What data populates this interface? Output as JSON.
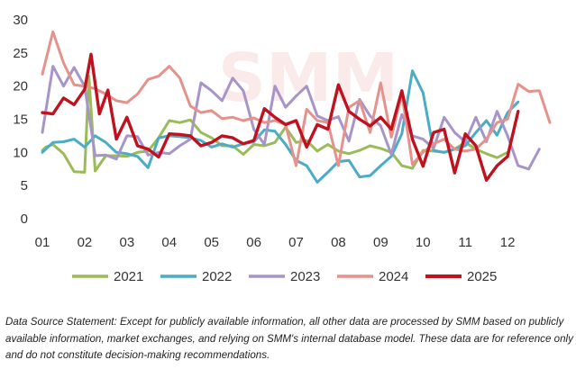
{
  "chart_data": {
    "type": "line",
    "title": "",
    "xlabel": "",
    "ylabel": "",
    "ylim": [
      0,
      30
    ],
    "yticks": [
      0,
      5,
      10,
      15,
      20,
      25,
      30
    ],
    "xlim": [
      1,
      13
    ],
    "xticks": [
      "01",
      "02",
      "03",
      "04",
      "05",
      "06",
      "07",
      "08",
      "09",
      "10",
      "11",
      "12"
    ],
    "grid": false,
    "legend": "bottom",
    "watermark": "SMM",
    "series": [
      {
        "name": "2021",
        "color": "#9bbb59",
        "x": [
          1,
          1.08,
          1.25,
          1.5,
          1.75,
          2.0,
          2.1,
          2.25,
          2.5,
          2.75,
          3.0,
          3.25,
          3.5,
          3.75,
          4.0,
          4.25,
          4.5,
          4.75,
          5.0,
          5.25,
          5.5,
          5.75,
          6.0,
          6.25,
          6.5,
          6.75,
          7.0,
          7.25,
          7.5,
          7.75,
          8.0,
          8.25,
          8.5,
          8.75,
          9.0,
          9.25,
          9.5,
          9.75,
          10.0,
          10.25,
          10.5,
          10.75,
          11.0,
          11.25,
          11.5,
          11.75,
          12.0
        ],
        "y": [
          10.3,
          10.8,
          11.2,
          9.8,
          7.1,
          7.0,
          21.5,
          7.2,
          9.5,
          9.5,
          9.4,
          10.0,
          10.2,
          12.2,
          14.8,
          14.5,
          14.9,
          13.0,
          12.2,
          11.0,
          11.0,
          9.7,
          11.2,
          11.0,
          11.5,
          13.8,
          11.5,
          11.8,
          10.2,
          11.2,
          10.2,
          9.8,
          10.3,
          11.0,
          10.6,
          10.0,
          8.0,
          7.6,
          10.3,
          10.2,
          10.0,
          10.5,
          11.5,
          10.5,
          9.8,
          9.2,
          10.0
        ]
      },
      {
        "name": "2022",
        "color": "#4bacc6",
        "x": [
          1,
          1.25,
          1.5,
          1.75,
          2.0,
          2.25,
          2.5,
          2.75,
          3.0,
          3.25,
          3.5,
          3.75,
          4.0,
          4.25,
          4.5,
          4.75,
          5.0,
          5.25,
          5.5,
          5.75,
          6.0,
          6.25,
          6.5,
          6.75,
          7.0,
          7.25,
          7.5,
          7.75,
          8.0,
          8.25,
          8.5,
          8.75,
          9.0,
          9.25,
          9.5,
          9.75,
          10.0,
          10.25,
          10.5,
          10.75,
          11.0,
          11.25,
          11.5,
          11.75,
          12.0,
          12.25
        ],
        "y": [
          10.0,
          11.5,
          11.6,
          12.0,
          10.8,
          12.5,
          11.5,
          10.0,
          9.8,
          9.4,
          7.7,
          12.2,
          12.5,
          12.4,
          12.2,
          11.8,
          10.8,
          11.3,
          10.8,
          11.3,
          11.6,
          13.4,
          13.2,
          11.2,
          8.8,
          8.0,
          5.5,
          7.0,
          8.6,
          8.8,
          6.3,
          6.5,
          8.0,
          9.4,
          12.8,
          22.3,
          19.0,
          10.3,
          10.0,
          10.5,
          11.0,
          13.0,
          14.8,
          12.6,
          16.0,
          17.6
        ]
      },
      {
        "name": "2023",
        "color": "#a794c8",
        "x": [
          1,
          1.25,
          1.5,
          1.75,
          2.0,
          2.25,
          2.5,
          2.75,
          3.0,
          3.25,
          3.5,
          3.75,
          4.0,
          4.25,
          4.5,
          4.75,
          5.0,
          5.25,
          5.5,
          5.75,
          6.0,
          6.25,
          6.5,
          6.75,
          7.0,
          7.25,
          7.5,
          7.75,
          8.0,
          8.25,
          8.5,
          8.75,
          9.0,
          9.25,
          9.5,
          9.75,
          10.0,
          10.25,
          10.5,
          10.75,
          11.0,
          11.25,
          11.5,
          11.75,
          12.0,
          12.25,
          12.5,
          12.75
        ],
        "y": [
          13.0,
          23.0,
          20.0,
          22.8,
          20.0,
          9.5,
          9.6,
          9.0,
          12.5,
          12.4,
          9.6,
          10.0,
          9.8,
          11.0,
          12.0,
          20.5,
          19.3,
          17.8,
          21.2,
          19.3,
          13.5,
          11.2,
          20.0,
          16.8,
          18.5,
          20.0,
          15.5,
          14.8,
          15.4,
          11.7,
          18.0,
          15.5,
          14.0,
          9.7,
          15.7,
          12.5,
          12.0,
          10.6,
          15.3,
          13.0,
          11.6,
          15.3,
          11.6,
          16.2,
          12.5,
          8.0,
          7.5,
          10.5
        ]
      },
      {
        "name": "2024",
        "color": "#e6928c",
        "x": [
          1,
          1.25,
          1.5,
          1.75,
          2.0,
          2.25,
          2.5,
          2.75,
          3.0,
          3.25,
          3.5,
          3.75,
          4.0,
          4.25,
          4.5,
          4.75,
          5.0,
          5.25,
          5.5,
          5.75,
          6.0,
          6.25,
          6.5,
          6.75,
          7.0,
          7.25,
          7.5,
          7.75,
          8.0,
          8.25,
          8.5,
          8.75,
          9.0,
          9.25,
          9.5,
          9.75,
          10.0,
          10.25,
          10.5,
          10.75,
          11.0,
          11.25,
          11.5,
          11.75,
          12.0,
          12.25,
          12.5,
          12.75,
          13.0
        ],
        "y": [
          21.8,
          28.2,
          23.5,
          20.2,
          20.0,
          19.6,
          18.8,
          17.8,
          17.5,
          18.8,
          21.0,
          21.5,
          23.0,
          21.2,
          17.0,
          16.0,
          16.3,
          15.1,
          15.3,
          14.8,
          15.2,
          14.5,
          14.8,
          14.2,
          8.0,
          16.5,
          14.8,
          14.5,
          8.0,
          16.8,
          17.8,
          13.0,
          20.5,
          12.3,
          18.8,
          8.2,
          10.0,
          11.3,
          12.0,
          10.5,
          10.2,
          10.5,
          12.0,
          14.5,
          15.0,
          20.3,
          19.2,
          19.3,
          14.5
        ]
      },
      {
        "name": "2025",
        "color": "#c0111f",
        "x": [
          1,
          1.25,
          1.5,
          1.75,
          2.0,
          2.15,
          2.35,
          2.55,
          2.75,
          3.0,
          3.25,
          3.5,
          3.75,
          4.0,
          4.25,
          4.5,
          4.75,
          5.0,
          5.25,
          5.5,
          5.75,
          6.0,
          6.25,
          6.5,
          6.75,
          7.0,
          7.25,
          7.5,
          7.75,
          8.0,
          8.25,
          8.5,
          8.75,
          9.0,
          9.25,
          9.5,
          9.75,
          10.0,
          10.25,
          10.5,
          10.75,
          11.0,
          11.25,
          11.5,
          11.75,
          12.0,
          12.25
        ],
        "y": [
          16.0,
          15.8,
          18.2,
          17.2,
          19.5,
          24.8,
          15.8,
          19.4,
          12.0,
          15.3,
          11.0,
          10.5,
          9.3,
          12.8,
          12.7,
          12.5,
          11.0,
          11.5,
          12.5,
          12.2,
          11.3,
          11.8,
          16.6,
          15.3,
          14.2,
          14.8,
          10.8,
          14.2,
          13.5,
          20.2,
          16.2,
          15.0,
          14.0,
          15.3,
          13.5,
          19.3,
          12.0,
          7.9,
          13.0,
          13.5,
          6.9,
          12.8,
          11.0,
          5.8,
          8.0,
          9.4,
          16.2
        ]
      }
    ]
  },
  "footnote": "Data Source Statement: Except for publicly available information, all other data are processed by SMM based on publicly available information, market exchanges, and relying on SMM's internal database model. These data are for reference only and do not constitute decision-making recommendations."
}
